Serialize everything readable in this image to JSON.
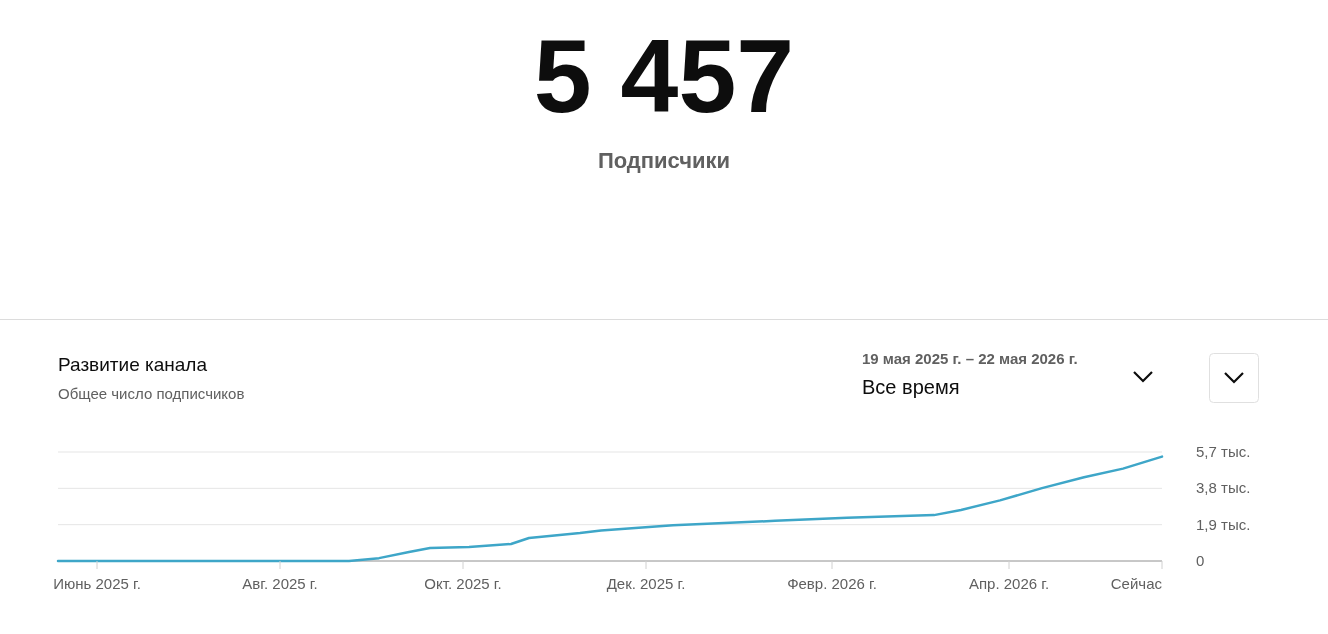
{
  "chart_data": {
    "type": "line",
    "title": "Развитие канала",
    "subtitle": "Общее число подписчиков",
    "annotations": [
      "5 457",
      "Подписчики",
      "19 мая 2025 г. – 22 мая 2026 г.",
      "Все время"
    ],
    "x": [
      "2025-05-19",
      "2025-08-24",
      "2025-09-03",
      "2025-09-13",
      "2025-09-20",
      "2025-10-03",
      "2025-10-17",
      "2025-10-23",
      "2025-11-09",
      "2025-11-16",
      "2025-12-10",
      "2026-01-13",
      "2026-02-06",
      "2026-03-07",
      "2026-03-16",
      "2026-03-29",
      "2026-04-12",
      "2026-04-26",
      "2026-05-09",
      "2026-05-22"
    ],
    "series": [
      {
        "color": "#3ea6c8",
        "values": [
          0,
          0,
          0.15,
          0.47,
          0.68,
          0.73,
          0.89,
          1.2,
          1.46,
          1.6,
          1.87,
          2.1,
          2.26,
          2.4,
          2.67,
          3.17,
          3.81,
          4.38,
          4.83,
          5.46
        ]
      }
    ],
    "xlim": [
      "2025-05-19",
      "2026-05-22"
    ],
    "xticks": [
      {
        "value": "2025-06-01",
        "label": "Июнь 2025 г."
      },
      {
        "value": "2025-08-01",
        "label": "Авг. 2025 г."
      },
      {
        "value": "2025-10-01",
        "label": "Окт. 2025 г."
      },
      {
        "value": "2025-12-01",
        "label": "Дек. 2025 г."
      },
      {
        "value": "2026-02-01",
        "label": "Февр. 2026 г."
      },
      {
        "value": "2026-04-01",
        "label": "Апр. 2026 г."
      },
      {
        "value": "2026-05-22",
        "label": "Сейчас"
      }
    ],
    "ylim": [
      0,
      5.7
    ],
    "yticks": [
      0,
      {
        "value": 1.9,
        "label": "1,9 тыс."
      },
      {
        "value": 3.8,
        "label": "3,8 тыс."
      },
      {
        "value": 5.7,
        "label": "5,7 тыс."
      }
    ],
    "grid": "y",
    "marker": "none",
    "line_style": "solid"
  }
}
